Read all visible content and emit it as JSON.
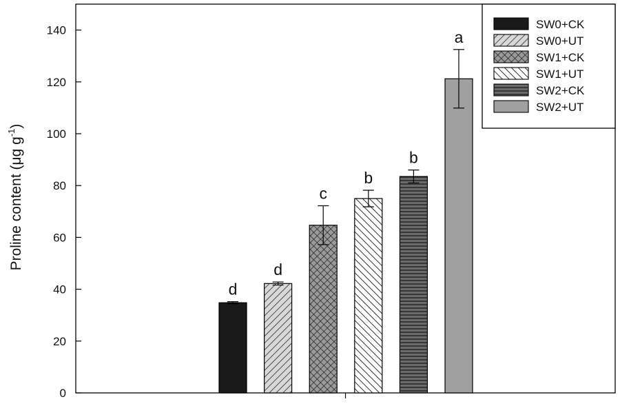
{
  "chart_data": {
    "type": "bar",
    "ylabel": "Proline content (μg g⁻¹)",
    "ylabel_parts": {
      "main": "Proline content (μg g",
      "sup": "-1",
      "close": ")"
    },
    "ylim": [
      0,
      150
    ],
    "yticks": [
      0,
      20,
      40,
      60,
      80,
      100,
      120,
      140
    ],
    "grid": false,
    "legend_position": "top-right",
    "series": [
      {
        "name": "SW0+CK",
        "value": 34.8,
        "error": 0.4,
        "letter": "d",
        "color": "#1a1a1a",
        "pattern": "solid-black"
      },
      {
        "name": "SW0+UT",
        "value": 42.2,
        "error": 0.6,
        "letter": "d",
        "color": "#c8c8c8",
        "pattern": "diagonal-forward"
      },
      {
        "name": "SW1+CK",
        "value": 64.7,
        "error": 7.5,
        "letter": "c",
        "color": "#8a8a8a",
        "pattern": "crosshatch"
      },
      {
        "name": "SW1+UT",
        "value": 75.0,
        "error": 3.2,
        "letter": "b",
        "color": "#ffffff",
        "pattern": "diagonal-back"
      },
      {
        "name": "SW2+CK",
        "value": 83.5,
        "error": 2.5,
        "letter": "b",
        "color": "#5e5e5e",
        "pattern": "horizontal-lines"
      },
      {
        "name": "SW2+UT",
        "value": 121.2,
        "error": 11.3,
        "letter": "a",
        "color": "#a0a0a0",
        "pattern": "solid-gray"
      }
    ]
  }
}
